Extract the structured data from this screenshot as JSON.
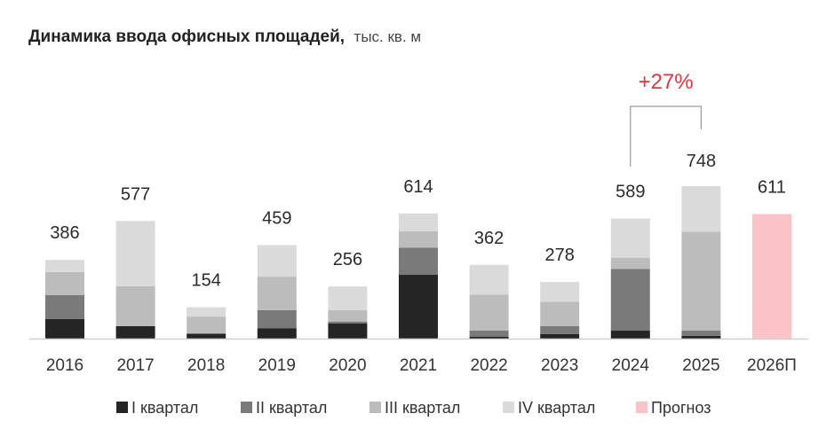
{
  "chart_data": {
    "type": "bar",
    "stacked": true,
    "title": "Динамика ввода офисных площадей,",
    "unit": "тыс. кв. м",
    "categories": [
      "2016",
      "2017",
      "2018",
      "2019",
      "2020",
      "2021",
      "2022",
      "2023",
      "2024",
      "2025",
      "2026П"
    ],
    "totals": [
      386,
      577,
      154,
      459,
      256,
      614,
      362,
      278,
      589,
      748,
      611
    ],
    "series": [
      {
        "name": "I квартал",
        "color": "#252525",
        "values": [
          96,
          61,
          24,
          50,
          74,
          313,
          10,
          22,
          39,
          14,
          null
        ]
      },
      {
        "name": "II квартал",
        "color": "#7a7a7a",
        "values": [
          118,
          0,
          0,
          90,
          10,
          133,
          29,
          39,
          303,
          25,
          null
        ]
      },
      {
        "name": "III квартал",
        "color": "#bcbcbc",
        "values": [
          113,
          196,
          84,
          164,
          55,
          81,
          177,
          120,
          55,
          485,
          null
        ]
      },
      {
        "name": "IV квартал",
        "color": "#dadada",
        "values": [
          59,
          320,
          46,
          155,
          117,
          87,
          146,
          97,
          192,
          224,
          null
        ]
      },
      {
        "name": "Прогноз",
        "color": "#f9c3c8",
        "values": [
          null,
          null,
          null,
          null,
          null,
          null,
          null,
          null,
          null,
          null,
          611
        ]
      }
    ],
    "annotation": {
      "text": "+27%",
      "from": "2024",
      "to": "2025",
      "color": "#e8343f"
    },
    "ylim": [
      0,
      760
    ],
    "grid": false,
    "legend_position": "bottom"
  }
}
